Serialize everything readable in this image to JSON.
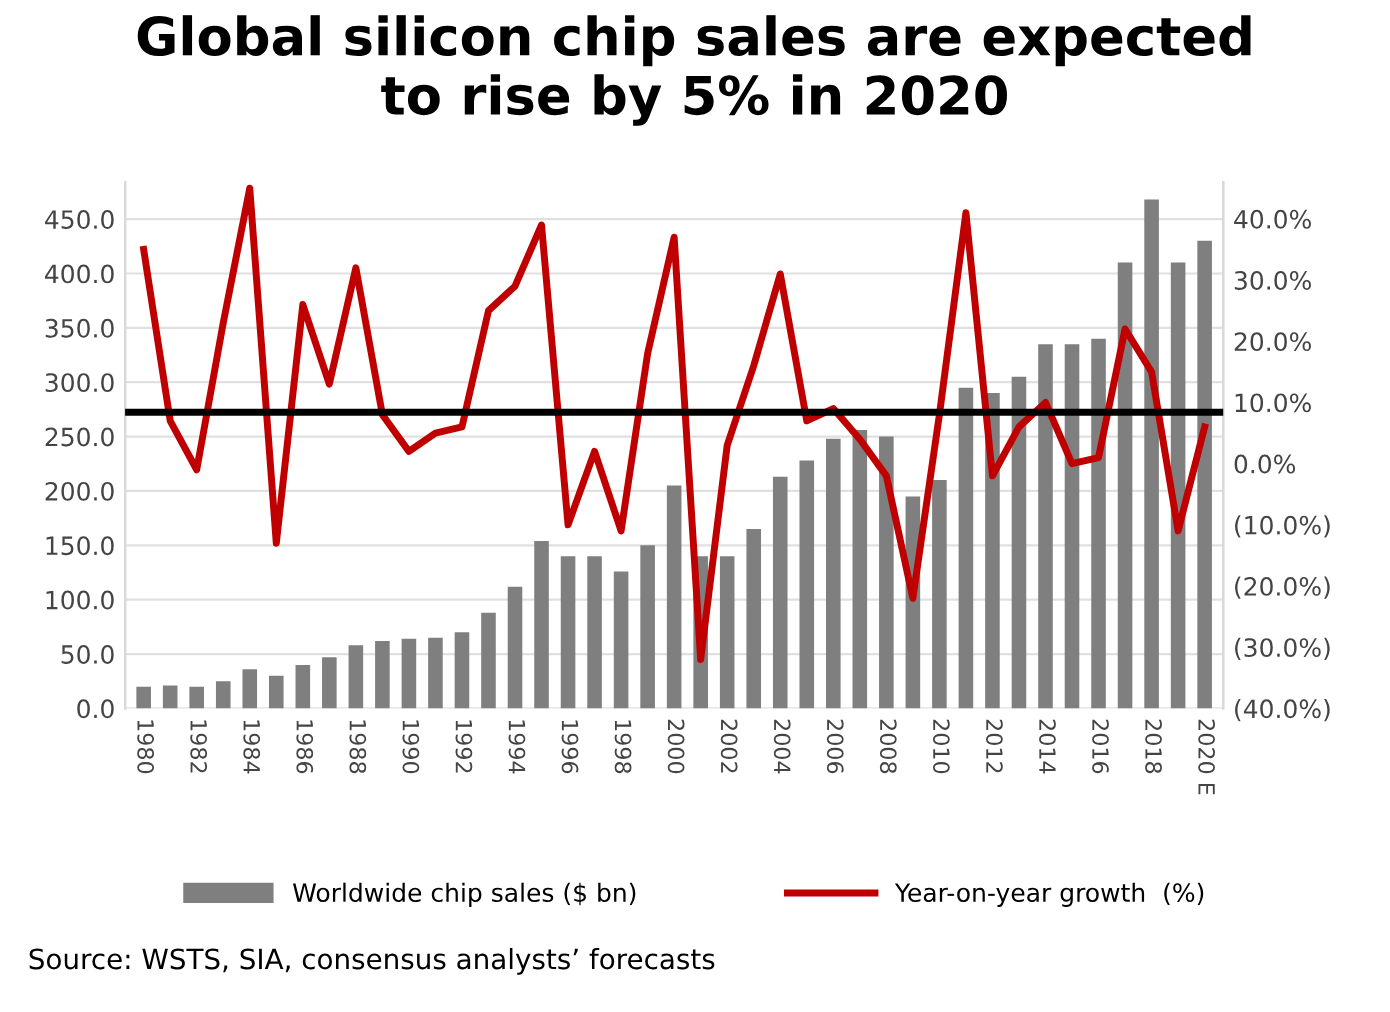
{
  "chart_data": {
    "type": "bar",
    "title": "Global silicon chip sales are expected\nto rise by 5% in 2020",
    "categories": [
      "1980",
      null,
      "1982",
      null,
      "1984",
      null,
      "1986",
      null,
      "1988",
      null,
      "1990",
      null,
      "1992",
      null,
      "1994",
      null,
      "1996",
      null,
      "1998",
      null,
      "2000",
      null,
      "2002",
      null,
      "2004",
      null,
      "2006",
      null,
      "2008",
      null,
      "2010",
      null,
      "2012",
      null,
      "2014",
      null,
      "2016",
      null,
      "2018",
      null,
      "2020 E"
    ],
    "series": [
      {
        "name": "Worldwide chip sales ($ bn)",
        "color": "#7f7f7f",
        "values": [
          20,
          21,
          20,
          25,
          36,
          30,
          40,
          47,
          58,
          62,
          64,
          65,
          70,
          88,
          112,
          154,
          140,
          140,
          126,
          150,
          205,
          140,
          140,
          165,
          213,
          228,
          248,
          256,
          250,
          195,
          210,
          295,
          290,
          305,
          335,
          335,
          340,
          410,
          468,
          410,
          430
        ]
      },
      {
        "name": "Year-on-year growth  (%)",
        "type": "line",
        "axis": "y2",
        "color": "#c00000",
        "values": [
          35,
          7,
          -1,
          23,
          45,
          -13,
          26,
          13,
          32,
          8,
          2,
          5,
          6,
          25,
          29,
          39,
          -10,
          2,
          -11,
          18,
          37,
          -32,
          3,
          16,
          31,
          7,
          9,
          4,
          -2,
          -22,
          8,
          41,
          -2,
          6,
          10,
          0,
          1,
          22,
          15,
          -11,
          6
        ]
      }
    ],
    "ylim": [
      0,
      484
    ],
    "yticks": [
      {
        "value": 0,
        "label": "0.0"
      },
      {
        "value": 50,
        "label": "50.0"
      },
      {
        "value": 100,
        "label": "100.0"
      },
      {
        "value": 150,
        "label": "150.0"
      },
      {
        "value": 200,
        "label": "200.0"
      },
      {
        "value": 250,
        "label": "250.0"
      },
      {
        "value": 300,
        "label": "300.0"
      },
      {
        "value": 350,
        "label": "350.0"
      },
      {
        "value": 400,
        "label": "400.0"
      },
      {
        "value": 450,
        "label": "450.0"
      }
    ],
    "y2lim": [
      -40,
      46
    ],
    "y2ticks": [
      {
        "value": -40,
        "label": "(40.0%)"
      },
      {
        "value": -30,
        "label": "(30.0%)"
      },
      {
        "value": -20,
        "label": "(20.0%)"
      },
      {
        "value": -10,
        "label": "(10.0%)"
      },
      {
        "value": 0,
        "label": "0.0%"
      },
      {
        "value": 10,
        "label": "10.0%"
      },
      {
        "value": 20,
        "label": "20.0%"
      },
      {
        "value": 30,
        "label": "30.0%"
      },
      {
        "value": 40,
        "label": "40.0%"
      }
    ],
    "ref_lines": [
      {
        "axis": "y2",
        "value": 8.4,
        "color": "#000000"
      }
    ],
    "grid": "y",
    "legend": "bottom",
    "annotations": [
      "Source: WSTS, SIA, consensus analysts’ forecasts"
    ]
  }
}
